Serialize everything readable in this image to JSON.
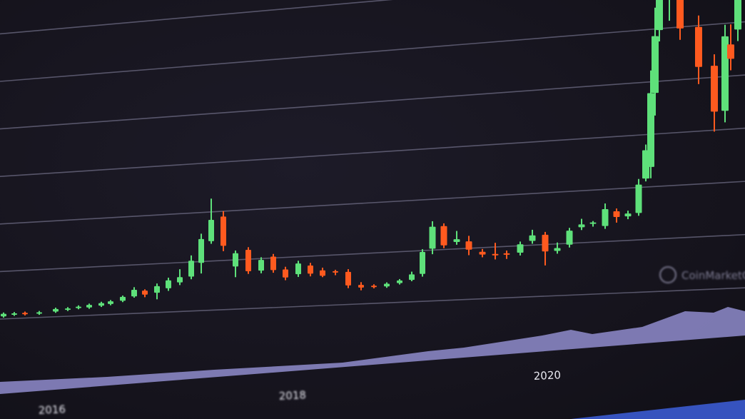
{
  "chart_data": {
    "type": "candlestick",
    "title": "",
    "xlabel": "",
    "ylabel": "",
    "x_tick_labels": [
      "2016",
      "2018",
      "2020"
    ],
    "grid": true,
    "watermark": "CoinMarketCap",
    "colors": {
      "up": "#5ee07a",
      "down": "#ff5a1f",
      "background": "#17151f",
      "grid": "#8c8aa8",
      "volume_area": "#8f8ccc"
    },
    "candles": [
      {
        "o": 1,
        "c": 2,
        "h": 2.5,
        "l": 0.5
      },
      {
        "o": 1.5,
        "c": 2,
        "h": 2.5,
        "l": 1
      },
      {
        "o": 2,
        "c": 1.5,
        "h": 2.5,
        "l": 1
      },
      {
        "o": 1.5,
        "c": 2,
        "h": 2.5,
        "l": 1
      },
      {
        "o": 2,
        "c": 3,
        "h": 3.5,
        "l": 1.5
      },
      {
        "o": 2.5,
        "c": 3,
        "h": 3.5,
        "l": 2
      },
      {
        "o": 3,
        "c": 3.5,
        "h": 4,
        "l": 2.5
      },
      {
        "o": 3,
        "c": 4,
        "h": 4.5,
        "l": 2.5
      },
      {
        "o": 3.5,
        "c": 4.5,
        "h": 5,
        "l": 3
      },
      {
        "o": 4,
        "c": 5,
        "h": 5.5,
        "l": 3.5
      },
      {
        "o": 5,
        "c": 6.5,
        "h": 7,
        "l": 4.5
      },
      {
        "o": 6.5,
        "c": 9,
        "h": 10,
        "l": 6
      },
      {
        "o": 8.5,
        "c": 7,
        "h": 9,
        "l": 6
      },
      {
        "o": 7.5,
        "c": 10,
        "h": 11,
        "l": 5
      },
      {
        "o": 9,
        "c": 12,
        "h": 13,
        "l": 8
      },
      {
        "o": 11,
        "c": 13,
        "h": 16,
        "l": 10
      },
      {
        "o": 13,
        "c": 19,
        "h": 21,
        "l": 12
      },
      {
        "o": 18,
        "c": 27,
        "h": 29,
        "l": 14
      },
      {
        "o": 26,
        "c": 34,
        "h": 42,
        "l": 25
      },
      {
        "o": 35,
        "c": 24,
        "h": 37,
        "l": 22
      },
      {
        "o": 16,
        "c": 21,
        "h": 22,
        "l": 12
      },
      {
        "o": 22,
        "c": 14,
        "h": 23,
        "l": 13
      },
      {
        "o": 14,
        "c": 18,
        "h": 19,
        "l": 13
      },
      {
        "o": 19,
        "c": 14,
        "h": 20,
        "l": 13
      },
      {
        "o": 14,
        "c": 11,
        "h": 15,
        "l": 10
      },
      {
        "o": 12,
        "c": 16,
        "h": 17,
        "l": 11
      },
      {
        "o": 15,
        "c": 12,
        "h": 16,
        "l": 11
      },
      {
        "o": 13,
        "c": 11,
        "h": 14,
        "l": 10.5
      },
      {
        "o": 12.5,
        "c": 12,
        "h": 13,
        "l": 11
      },
      {
        "o": 12,
        "c": 7,
        "h": 13,
        "l": 6
      },
      {
        "o": 7,
        "c": 6,
        "h": 8,
        "l": 5
      },
      {
        "o": 6.5,
        "c": 6,
        "h": 7,
        "l": 5.5
      },
      {
        "o": 6,
        "c": 7,
        "h": 7.5,
        "l": 5.5
      },
      {
        "o": 7,
        "c": 8,
        "h": 8.5,
        "l": 6.5
      },
      {
        "o": 8,
        "c": 10,
        "h": 11,
        "l": 7.5
      },
      {
        "o": 10,
        "c": 18,
        "h": 19,
        "l": 9
      },
      {
        "o": 19,
        "c": 27,
        "h": 29,
        "l": 17
      },
      {
        "o": 27,
        "c": 20,
        "h": 28,
        "l": 19
      },
      {
        "o": 21,
        "c": 22,
        "h": 25,
        "l": 20
      },
      {
        "o": 21,
        "c": 18,
        "h": 23,
        "l": 16
      },
      {
        "o": 17,
        "c": 16,
        "h": 18,
        "l": 15
      },
      {
        "o": 16,
        "c": 15.5,
        "h": 20,
        "l": 14
      },
      {
        "o": 16,
        "c": 15.5,
        "h": 17,
        "l": 14
      },
      {
        "o": 16,
        "c": 19,
        "h": 20,
        "l": 15
      },
      {
        "o": 20,
        "c": 22,
        "h": 24,
        "l": 19
      },
      {
        "o": 22,
        "c": 16,
        "h": 23,
        "l": 11
      },
      {
        "o": 16,
        "c": 17,
        "h": 19,
        "l": 15
      },
      {
        "o": 18,
        "c": 23,
        "h": 24,
        "l": 17
      },
      {
        "o": 24,
        "c": 25,
        "h": 27,
        "l": 23
      },
      {
        "o": 25,
        "c": 25.5,
        "h": 26,
        "l": 24
      },
      {
        "o": 24,
        "c": 30,
        "h": 32,
        "l": 23
      },
      {
        "o": 29,
        "c": 27,
        "h": 30,
        "l": 25
      },
      {
        "o": 27,
        "c": 28,
        "h": 29,
        "l": 26
      },
      {
        "o": 28,
        "c": 38,
        "h": 40,
        "l": 27
      },
      {
        "o": 40,
        "c": 50,
        "h": 52,
        "l": 39
      },
      {
        "o": 44,
        "c": 70,
        "h": 78,
        "l": 40
      },
      {
        "o": 70,
        "c": 90,
        "h": 100,
        "l": 62
      },
      {
        "o": 92,
        "c": 110,
        "h": 118,
        "l": 88
      },
      {
        "o": 105,
        "c": 115,
        "h": 120,
        "l": 95
      },
      {
        "o": 115,
        "c": 92,
        "h": 120,
        "l": 88
      },
      {
        "o": 92,
        "c": 78,
        "h": 96,
        "l": 72
      },
      {
        "o": 78,
        "c": 62,
        "h": 82,
        "l": 55
      },
      {
        "o": 62,
        "c": 88,
        "h": 92,
        "l": 58
      },
      {
        "o": 85,
        "c": 80,
        "h": 92,
        "l": 76
      },
      {
        "o": 90,
        "c": 110,
        "h": 120,
        "l": 86
      }
    ]
  }
}
